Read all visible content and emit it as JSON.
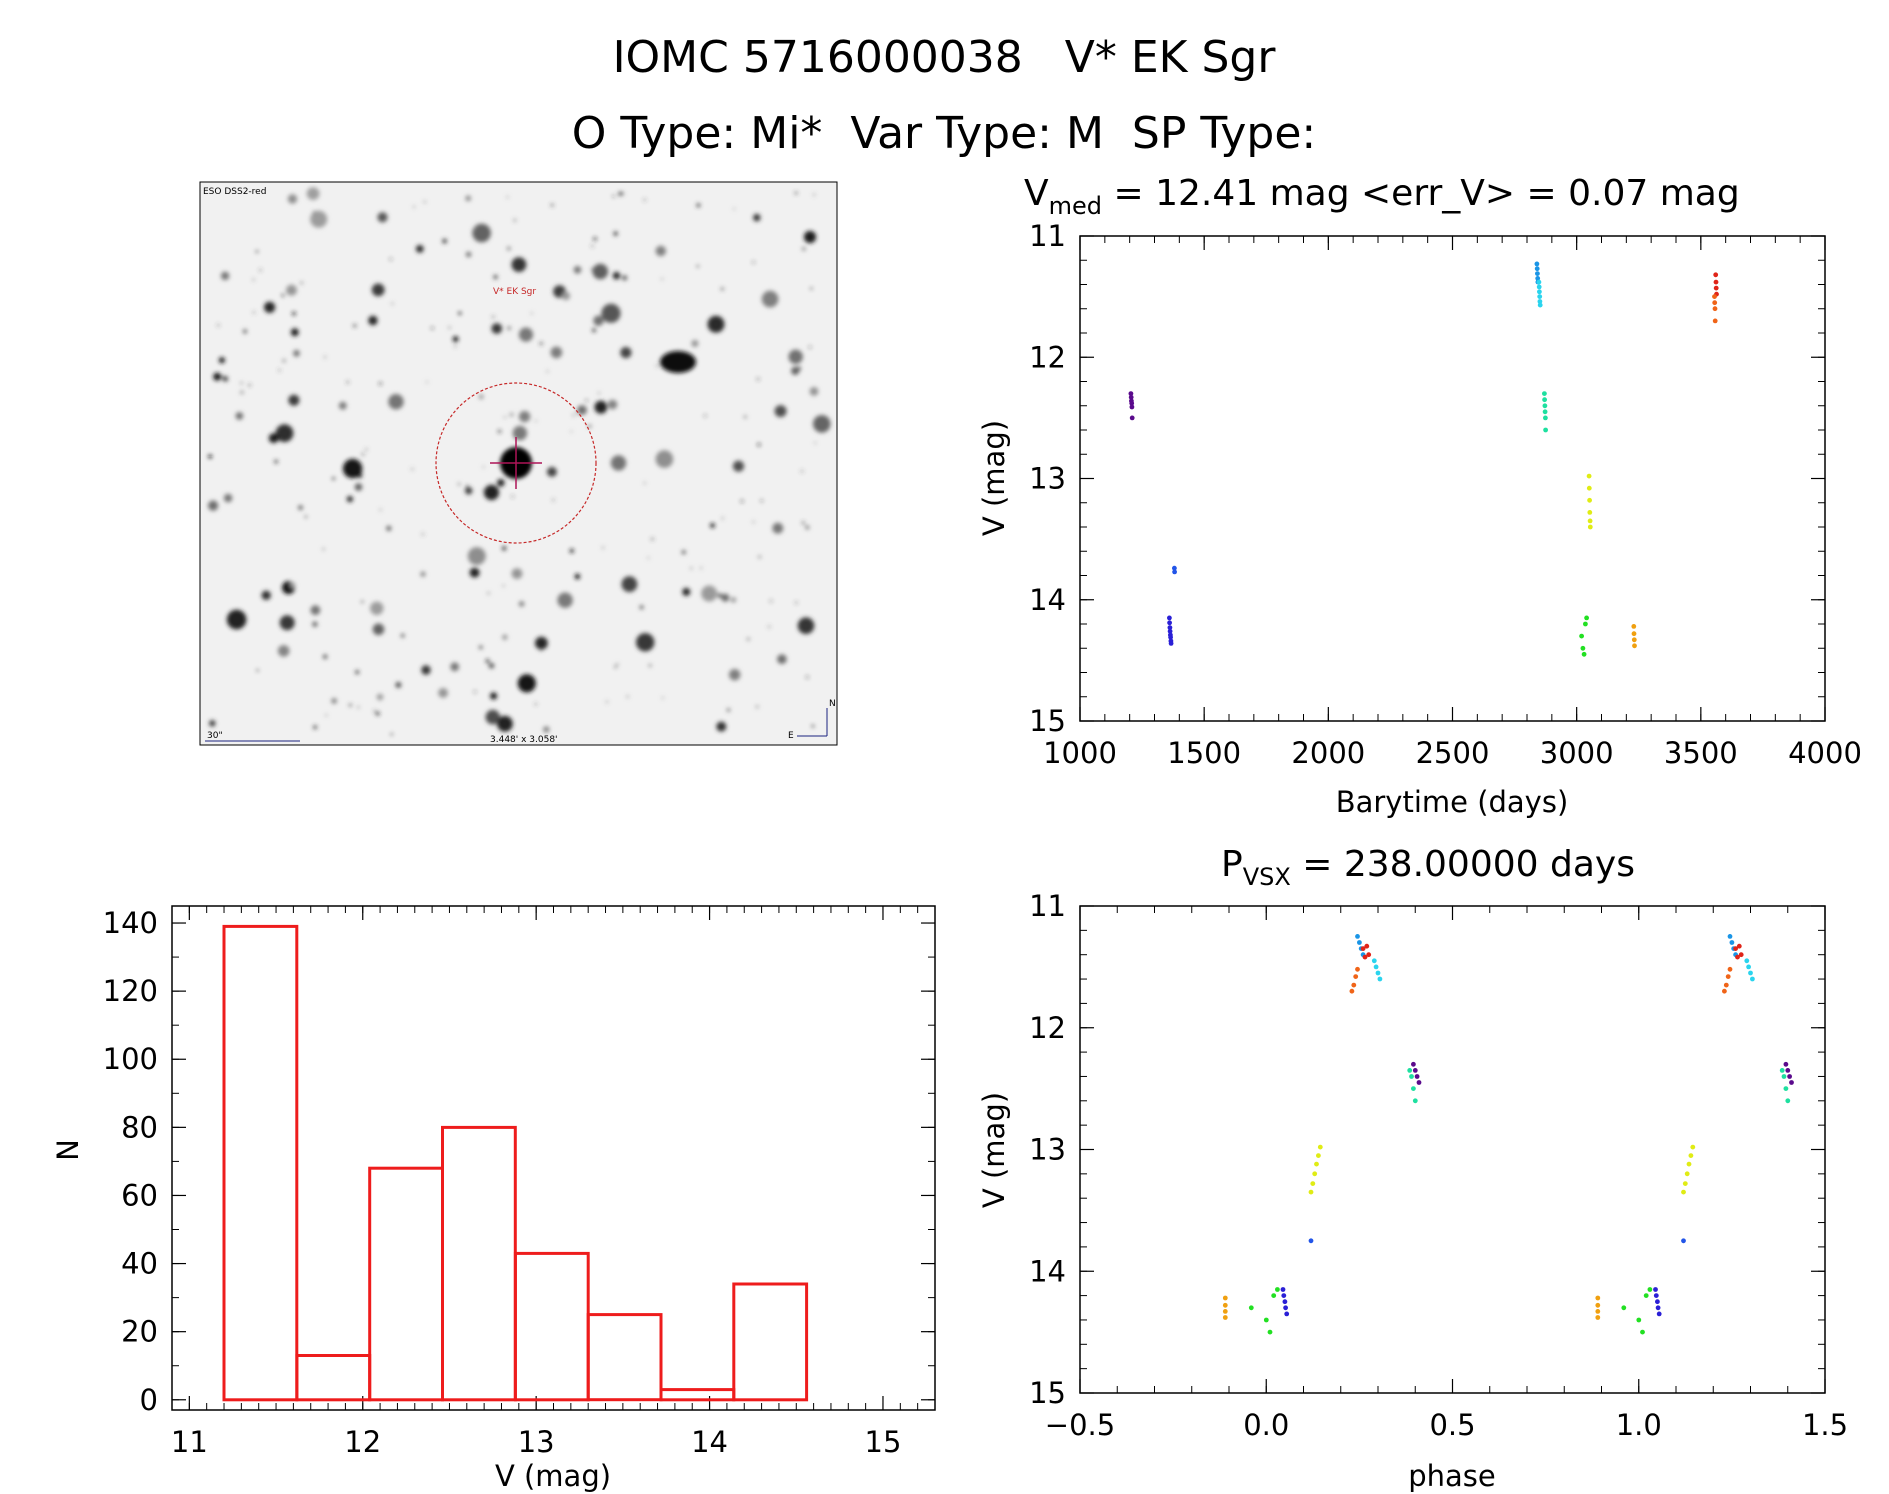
{
  "header": {
    "title": "IOMC 5716000038   V* EK Sgr",
    "subtitle": "O Type: Mi*  Var Type: M  SP Type:"
  },
  "image_panel": {
    "survey_label": "ESO DSS2-red",
    "target_label": "V* EK Sgr",
    "scale_label": "30\"",
    "fov_label": "3.448' x 3.058'",
    "north_label": "N",
    "east_label": "E"
  },
  "chart_data": [
    {
      "id": "lightcurve",
      "type": "scatter",
      "title_main": "V",
      "title_sub": "med",
      "title_rest": " = 12.41 mag <err_V> = 0.07 mag",
      "xlabel": "Barytime (days)",
      "ylabel": "V (mag)",
      "xlim": [
        1000,
        4000
      ],
      "ylim": [
        15,
        11
      ],
      "xticks": [
        1000,
        1500,
        2000,
        2500,
        3000,
        3500,
        4000
      ],
      "yticks": [
        11,
        12,
        13,
        14,
        15
      ],
      "series": [
        {
          "name": "s1",
          "color": "#5a0a8c",
          "x": [
            1205,
            1206,
            1207,
            1208,
            1209,
            1210
          ],
          "y": [
            12.3,
            12.33,
            12.36,
            12.38,
            12.41,
            12.5
          ]
        },
        {
          "name": "s2",
          "color": "#2a1fd6",
          "x": [
            1360,
            1361,
            1362,
            1363,
            1364,
            1365,
            1366,
            1367
          ],
          "y": [
            14.15,
            14.19,
            14.23,
            14.26,
            14.29,
            14.31,
            14.34,
            14.36
          ]
        },
        {
          "name": "s2b",
          "color": "#2255e8",
          "x": [
            1380,
            1381
          ],
          "y": [
            13.74,
            13.77
          ]
        },
        {
          "name": "s3",
          "color": "#1a95e6",
          "x": [
            2840,
            2841,
            2842,
            2843,
            2844
          ],
          "y": [
            11.23,
            11.27,
            11.31,
            11.35,
            11.38
          ]
        },
        {
          "name": "s4",
          "color": "#2ad4ee",
          "x": [
            2848,
            2849,
            2850,
            2851,
            2852,
            2853
          ],
          "y": [
            11.38,
            11.42,
            11.46,
            11.5,
            11.54,
            11.57
          ]
        },
        {
          "name": "s5",
          "color": "#1ee0a0",
          "x": [
            2870,
            2871,
            2872,
            2873,
            2874,
            2875
          ],
          "y": [
            12.3,
            12.35,
            12.4,
            12.45,
            12.5,
            12.6
          ]
        },
        {
          "name": "s6",
          "color": "#22e022",
          "x": [
            3020,
            3025,
            3030,
            3035,
            3040
          ],
          "y": [
            14.3,
            14.4,
            14.45,
            14.2,
            14.15
          ]
        },
        {
          "name": "s7",
          "color": "#e0ec14",
          "x": [
            3050,
            3051,
            3052,
            3053,
            3054,
            3055
          ],
          "y": [
            12.98,
            13.08,
            13.18,
            13.28,
            13.35,
            13.4
          ]
        },
        {
          "name": "s8",
          "color": "#f0a010",
          "x": [
            3230,
            3231,
            3232,
            3233
          ],
          "y": [
            14.22,
            14.28,
            14.33,
            14.38
          ]
        },
        {
          "name": "s9",
          "color": "#e02418",
          "x": [
            3560,
            3561,
            3562,
            3563
          ],
          "y": [
            11.32,
            11.38,
            11.43,
            11.48
          ]
        },
        {
          "name": "s10",
          "color": "#f06418",
          "x": [
            3555,
            3556,
            3557,
            3558
          ],
          "y": [
            11.5,
            11.55,
            11.6,
            11.7
          ]
        }
      ]
    },
    {
      "id": "histogram",
      "type": "bar",
      "xlabel": "V (mag)",
      "ylabel": "N",
      "xlim": [
        10.9,
        15.3
      ],
      "ylim": [
        -3,
        145
      ],
      "xticks": [
        11,
        12,
        13,
        14,
        15
      ],
      "yticks": [
        0,
        20,
        40,
        60,
        80,
        100,
        120,
        140
      ],
      "bin_edges": [
        11.2,
        11.62,
        12.04,
        12.46,
        12.88,
        13.3,
        13.72,
        14.14,
        14.56
      ],
      "values": [
        139,
        13,
        68,
        80,
        43,
        25,
        3,
        34
      ],
      "color": "#ee1c1c"
    },
    {
      "id": "phased",
      "type": "scatter",
      "title_main": "P",
      "title_sub": "VSX",
      "title_rest": " = 238.00000 days",
      "xlabel": "phase",
      "ylabel": "V (mag)",
      "xlim": [
        -0.5,
        1.5
      ],
      "ylim": [
        15,
        11
      ],
      "xticks": [
        -0.5,
        0.0,
        0.5,
        1.0,
        1.5
      ],
      "xtick_labels": [
        "−0.5",
        "0.0",
        "0.5",
        "1.0",
        "1.5"
      ],
      "yticks": [
        11,
        12,
        13,
        14,
        15
      ],
      "series": [
        {
          "name": "s1",
          "color": "#5a0a8c",
          "x": [
            0.395,
            0.4,
            0.405,
            0.41,
            1.395,
            1.4,
            1.405,
            1.41
          ],
          "y": [
            12.3,
            12.35,
            12.4,
            12.45,
            12.3,
            12.35,
            12.4,
            12.45
          ]
        },
        {
          "name": "s2",
          "color": "#2a1fd6",
          "x": [
            0.045,
            0.047,
            0.05,
            0.052,
            0.055,
            1.045,
            1.047,
            1.05,
            1.052,
            1.055
          ],
          "y": [
            14.15,
            14.2,
            14.25,
            14.3,
            14.35,
            14.15,
            14.2,
            14.25,
            14.3,
            14.35
          ]
        },
        {
          "name": "s2b",
          "color": "#2255e8",
          "x": [
            0.12,
            1.12
          ],
          "y": [
            13.75,
            13.75
          ]
        },
        {
          "name": "s3",
          "color": "#1a95e6",
          "x": [
            0.245,
            0.25,
            0.255,
            0.26,
            1.245,
            1.25,
            1.255,
            1.26
          ],
          "y": [
            11.25,
            11.3,
            11.35,
            11.4,
            11.25,
            11.3,
            11.35,
            11.4
          ]
        },
        {
          "name": "s4",
          "color": "#2ad4ee",
          "x": [
            0.29,
            0.295,
            0.3,
            0.305,
            1.29,
            1.295,
            1.3,
            1.305
          ],
          "y": [
            11.45,
            11.5,
            11.55,
            11.6,
            11.45,
            11.5,
            11.55,
            11.6
          ]
        },
        {
          "name": "s5",
          "color": "#1ee0a0",
          "x": [
            0.385,
            0.39,
            0.395,
            0.4,
            1.385,
            1.39,
            1.395,
            1.4
          ],
          "y": [
            12.35,
            12.4,
            12.5,
            12.6,
            12.35,
            12.4,
            12.5,
            12.6
          ]
        },
        {
          "name": "s6",
          "color": "#22e022",
          "x": [
            -0.04,
            0.0,
            0.01,
            0.02,
            0.03,
            0.96,
            1.0,
            1.01,
            1.02,
            1.03
          ],
          "y": [
            14.3,
            14.4,
            14.5,
            14.2,
            14.15,
            14.3,
            14.4,
            14.5,
            14.2,
            14.15
          ]
        },
        {
          "name": "s7",
          "color": "#e0ec14",
          "x": [
            0.12,
            0.125,
            0.13,
            0.135,
            0.14,
            0.145,
            1.12,
            1.125,
            1.13,
            1.135,
            1.14,
            1.145
          ],
          "y": [
            13.35,
            13.28,
            13.2,
            13.12,
            13.05,
            12.98,
            13.35,
            13.28,
            13.2,
            13.12,
            13.05,
            12.98
          ]
        },
        {
          "name": "s8",
          "color": "#f0a010",
          "x": [
            -0.11,
            -0.11,
            -0.11,
            -0.11,
            0.89,
            0.89,
            0.89,
            0.89
          ],
          "y": [
            14.22,
            14.28,
            14.33,
            14.38,
            14.22,
            14.28,
            14.33,
            14.38
          ]
        },
        {
          "name": "s9",
          "color": "#e02418",
          "x": [
            0.26,
            0.265,
            0.27,
            0.275,
            1.26,
            1.265,
            1.27,
            1.275
          ],
          "y": [
            11.35,
            11.42,
            11.33,
            11.4,
            11.35,
            11.42,
            11.33,
            11.4
          ]
        },
        {
          "name": "s10",
          "color": "#f06418",
          "x": [
            0.23,
            0.235,
            0.24,
            0.245,
            1.23,
            1.235,
            1.24,
            1.245
          ],
          "y": [
            11.7,
            11.65,
            11.58,
            11.52,
            11.7,
            11.65,
            11.58,
            11.52
          ]
        }
      ]
    }
  ]
}
